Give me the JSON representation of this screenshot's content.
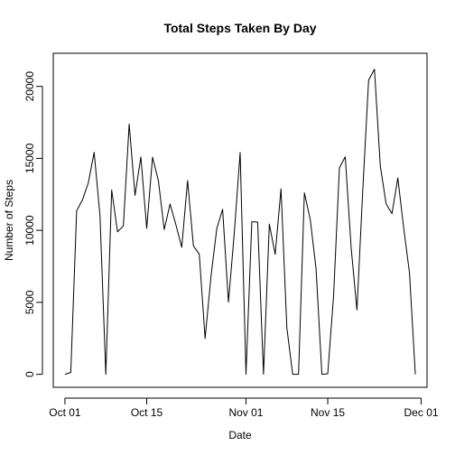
{
  "chart_data": {
    "type": "line",
    "title": "Total Steps Taken By Day",
    "xlabel": "Date",
    "ylabel": "Number of Steps",
    "x_tick_labels": [
      "Oct 01",
      "Oct 15",
      "Nov 01",
      "Nov 15",
      "Dec 01"
    ],
    "x_tick_dates": [
      "2012-10-01",
      "2012-10-15",
      "2012-11-01",
      "2012-11-15",
      "2012-12-01"
    ],
    "y_ticks": [
      0,
      5000,
      10000,
      15000,
      20000
    ],
    "y_tick_labels": [
      "0",
      "5000",
      "10000",
      "15000",
      "20000"
    ],
    "xlim": [
      "2012-09-29",
      "2012-12-02"
    ],
    "ylim": [
      -900,
      22300
    ],
    "line_color": "#000000",
    "grid": false,
    "x": [
      "2012-10-01",
      "2012-10-02",
      "2012-10-03",
      "2012-10-04",
      "2012-10-05",
      "2012-10-06",
      "2012-10-07",
      "2012-10-08",
      "2012-10-09",
      "2012-10-10",
      "2012-10-11",
      "2012-10-12",
      "2012-10-13",
      "2012-10-14",
      "2012-10-15",
      "2012-10-16",
      "2012-10-17",
      "2012-10-18",
      "2012-10-19",
      "2012-10-20",
      "2012-10-21",
      "2012-10-22",
      "2012-10-23",
      "2012-10-24",
      "2012-10-25",
      "2012-10-26",
      "2012-10-27",
      "2012-10-28",
      "2012-10-29",
      "2012-10-30",
      "2012-10-31",
      "2012-11-01",
      "2012-11-02",
      "2012-11-03",
      "2012-11-04",
      "2012-11-05",
      "2012-11-06",
      "2012-11-07",
      "2012-11-08",
      "2012-11-09",
      "2012-11-10",
      "2012-11-11",
      "2012-11-12",
      "2012-11-13",
      "2012-11-14",
      "2012-11-15",
      "2012-11-16",
      "2012-11-17",
      "2012-11-18",
      "2012-11-19",
      "2012-11-20",
      "2012-11-21",
      "2012-11-22",
      "2012-11-23",
      "2012-11-24",
      "2012-11-25",
      "2012-11-26",
      "2012-11-27",
      "2012-11-28",
      "2012-11-29",
      "2012-11-30"
    ],
    "values": [
      0,
      126,
      11352,
      12116,
      13294,
      15420,
      11015,
      0,
      12811,
      9900,
      10304,
      17382,
      12426,
      15098,
      10139,
      15084,
      13452,
      10056,
      11829,
      10395,
      8821,
      13460,
      8918,
      8355,
      2492,
      6778,
      10119,
      11458,
      5018,
      9819,
      15414,
      0,
      10600,
      10571,
      0,
      10439,
      8334,
      12883,
      3219,
      0,
      0,
      12608,
      10765,
      7336,
      0,
      41,
      5441,
      14339,
      15110,
      8841,
      4472,
      12787,
      20427,
      21194,
      14478,
      11834,
      11162,
      13646,
      10183,
      7047,
      0
    ]
  }
}
